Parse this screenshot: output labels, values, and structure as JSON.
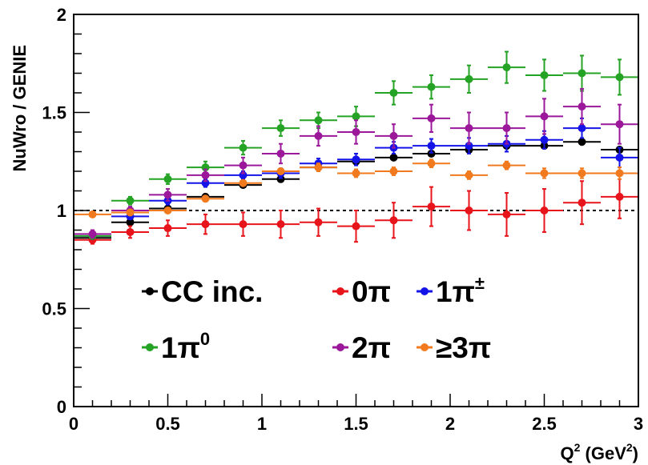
{
  "chart_data": {
    "type": "scatter",
    "xlabel": "Q",
    "xlabel_sup": "2",
    "xlabel_unit_open": " (GeV",
    "xlabel_unit_sup": "2",
    "xlabel_unit_close": ")",
    "ylabel": "NuWro / GENIE",
    "xlim": [
      0,
      3
    ],
    "ylim": [
      0,
      2
    ],
    "x_ticks": [
      {
        "value": 0,
        "label": "0"
      },
      {
        "value": 0.5,
        "label": "0.5"
      },
      {
        "value": 1,
        "label": "1"
      },
      {
        "value": 1.5,
        "label": "1.5"
      },
      {
        "value": 2,
        "label": "2"
      },
      {
        "value": 2.5,
        "label": "2.5"
      },
      {
        "value": 3,
        "label": "3"
      }
    ],
    "y_ticks": [
      {
        "value": 0,
        "label": "0"
      },
      {
        "value": 0.5,
        "label": "0.5"
      },
      {
        "value": 1,
        "label": "1"
      },
      {
        "value": 1.5,
        "label": "1.5"
      },
      {
        "value": 2,
        "label": "2"
      }
    ],
    "reference_line": {
      "y": 1,
      "style": "dotted",
      "color": "#000000"
    },
    "bin_half_width": 0.1,
    "x": [
      0.1,
      0.3,
      0.5,
      0.7,
      0.9,
      1.1,
      1.3,
      1.5,
      1.7,
      1.9,
      2.1,
      2.3,
      2.5,
      2.7,
      2.9
    ],
    "grid": false,
    "legend_placement": "lower-left",
    "series": [
      {
        "name": "CC inc.",
        "color": "#000000",
        "values": [
          0.86,
          0.94,
          1.01,
          1.07,
          1.13,
          1.16,
          1.22,
          1.25,
          1.27,
          1.29,
          1.31,
          1.33,
          1.33,
          1.35,
          1.31
        ],
        "errors": [
          0.012,
          0.012,
          0.012,
          0.012,
          0.012,
          0.012,
          0.012,
          0.012,
          0.012,
          0.012,
          0.012,
          0.012,
          0.012,
          0.012,
          0.015
        ]
      },
      {
        "name": "0π",
        "color": "#e8141b",
        "values": [
          0.85,
          0.89,
          0.91,
          0.93,
          0.93,
          0.93,
          0.94,
          0.92,
          0.95,
          1.02,
          1.0,
          0.98,
          1.0,
          1.04,
          1.07
        ],
        "errors": [
          0.02,
          0.03,
          0.04,
          0.05,
          0.06,
          0.07,
          0.07,
          0.08,
          0.09,
          0.1,
          0.1,
          0.11,
          0.11,
          0.11,
          0.11
        ]
      },
      {
        "name": "1π±",
        "name_sup": "±",
        "color": "#1414e8",
        "values": [
          0.87,
          0.97,
          1.05,
          1.14,
          1.18,
          1.19,
          1.24,
          1.26,
          1.32,
          1.33,
          1.33,
          1.34,
          1.36,
          1.42,
          1.27
        ],
        "errors": [
          0.015,
          0.015,
          0.02,
          0.02,
          0.02,
          0.025,
          0.025,
          0.03,
          0.03,
          0.035,
          0.04,
          0.04,
          0.045,
          0.05,
          0.05
        ]
      },
      {
        "name": "1π0",
        "name_sup": "0",
        "color": "#24a324",
        "values": [
          0.87,
          1.05,
          1.16,
          1.22,
          1.32,
          1.42,
          1.46,
          1.48,
          1.6,
          1.63,
          1.67,
          1.73,
          1.69,
          1.7,
          1.68
        ],
        "errors": [
          0.015,
          0.02,
          0.025,
          0.03,
          0.035,
          0.04,
          0.04,
          0.05,
          0.06,
          0.06,
          0.07,
          0.08,
          0.08,
          0.09,
          0.09
        ]
      },
      {
        "name": "2π",
        "color": "#9b189b",
        "values": [
          0.88,
          1.0,
          1.08,
          1.18,
          1.23,
          1.29,
          1.38,
          1.4,
          1.38,
          1.47,
          1.42,
          1.42,
          1.48,
          1.53,
          1.44
        ],
        "errors": [
          0.02,
          0.02,
          0.03,
          0.03,
          0.04,
          0.05,
          0.05,
          0.06,
          0.06,
          0.07,
          0.08,
          0.08,
          0.09,
          0.09,
          0.1
        ]
      },
      {
        "name": "≥3π",
        "color": "#f27a1e",
        "values": [
          0.98,
          0.99,
          1.0,
          1.06,
          1.14,
          1.2,
          1.22,
          1.19,
          1.2,
          1.24,
          1.18,
          1.23,
          1.19,
          1.19,
          1.19
        ],
        "errors": [
          0.01,
          0.01,
          0.01,
          0.012,
          0.015,
          0.015,
          0.02,
          0.02,
          0.02,
          0.02,
          0.02,
          0.02,
          0.025,
          0.025,
          0.03
        ]
      }
    ]
  }
}
